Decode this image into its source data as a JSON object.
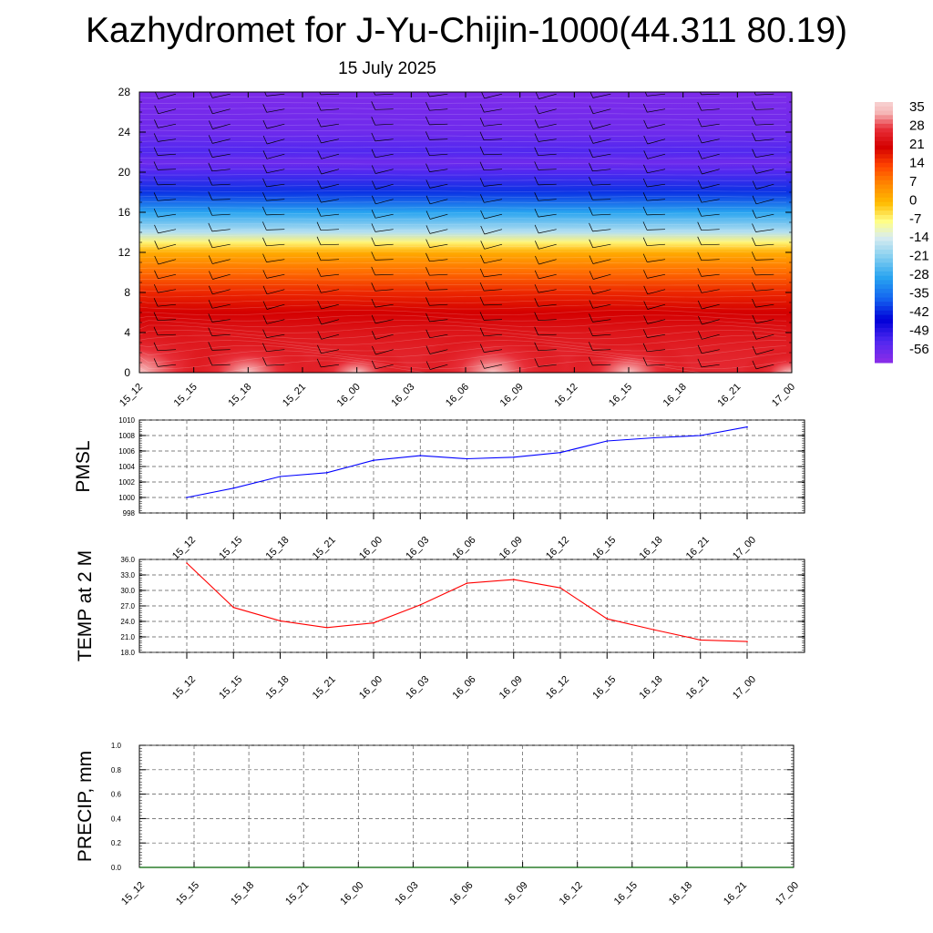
{
  "title": "Kazhydromet for J-Yu-Chijin-1000(44.311 80.19)",
  "date": "15 July 2025",
  "chart_data": [
    {
      "type": "heatmap",
      "name": "cross-section",
      "x_ticks": [
        "15_12",
        "15_15",
        "15_18",
        "15_21",
        "16_00",
        "16_03",
        "16_06",
        "16_09",
        "16_12",
        "16_15",
        "16_18",
        "16_21",
        "17_00"
      ],
      "y_ticks": [
        "0",
        "4",
        "8",
        "12",
        "16",
        "20",
        "24",
        "28"
      ],
      "ylim": [
        0,
        28
      ],
      "colorbar_labels": [
        "35",
        "28",
        "21",
        "14",
        "7",
        "0",
        "-7",
        "-14",
        "-21",
        "-28",
        "-35",
        "-42",
        "-49",
        "-56"
      ],
      "colorbar_range": [
        -60,
        38
      ],
      "temperature_profile_by_height": [
        {
          "y": 0,
          "v": 27
        },
        {
          "y": 2,
          "v": 26
        },
        {
          "y": 4,
          "v": 24
        },
        {
          "y": 6,
          "v": 21
        },
        {
          "y": 8,
          "v": 17
        },
        {
          "y": 10,
          "v": 10
        },
        {
          "y": 12,
          "v": 2
        },
        {
          "y": 13,
          "v": -6
        },
        {
          "y": 14,
          "v": -16
        },
        {
          "y": 16,
          "v": -28
        },
        {
          "y": 18,
          "v": -40
        },
        {
          "y": 20,
          "v": -52
        },
        {
          "y": 21,
          "v": -56
        },
        {
          "y": 22,
          "v": -52
        },
        {
          "y": 24,
          "v": -56
        },
        {
          "y": 28,
          "v": -58
        }
      ],
      "surface_warm_cores": [
        {
          "x": 0.0,
          "v": 35
        },
        {
          "x": 2.0,
          "v": 29
        },
        {
          "x": 4.0,
          "v": 24
        },
        {
          "x": 6.5,
          "v": 32
        },
        {
          "x": 9.0,
          "v": 28
        },
        {
          "x": 12.0,
          "v": 23
        }
      ],
      "grid": true,
      "colors": [
        "#f5b8b8",
        "#e8303a",
        "#d40000",
        "#ff4400",
        "#ff8800",
        "#ffbb00",
        "#ffff88",
        "#d8ecf0",
        "#88d0f0",
        "#28a4f0",
        "#1464f0",
        "#0000d8",
        "#5028f0",
        "#8c2ce8"
      ]
    },
    {
      "type": "line",
      "name": "PMSL",
      "ylabel": "PMSL",
      "x": [
        "15_12",
        "15_15",
        "15_18",
        "15_21",
        "16_00",
        "16_03",
        "16_06",
        "16_09",
        "16_12",
        "16_15",
        "16_18",
        "16_21",
        "17_00"
      ],
      "values": [
        1000.0,
        1001.2,
        1002.7,
        1003.2,
        1004.8,
        1005.4,
        1005.0,
        1005.2,
        1005.8,
        1007.3,
        1007.7,
        1008.0,
        1009.1
      ],
      "ylim": [
        998,
        1010
      ],
      "y_ticks": [
        "998",
        "1000",
        "1002",
        "1004",
        "1006",
        "1008",
        "1010"
      ],
      "color": "#0000ff",
      "grid": true
    },
    {
      "type": "line",
      "name": "TEMP",
      "ylabel": "TEMP at 2 M",
      "x": [
        "15_12",
        "15_15",
        "15_18",
        "15_21",
        "16_00",
        "16_03",
        "16_06",
        "16_09",
        "16_12",
        "16_15",
        "16_18",
        "16_21",
        "17_00"
      ],
      "values": [
        35.3,
        26.7,
        24.1,
        22.8,
        23.7,
        27.2,
        31.4,
        32.1,
        30.5,
        24.5,
        22.4,
        20.4,
        20.1
      ],
      "ylim": [
        18,
        36
      ],
      "y_ticks": [
        "18.0",
        "21.0",
        "24.0",
        "27.0",
        "30.0",
        "33.0",
        "36.0"
      ],
      "color": "#ff0000",
      "grid": true
    },
    {
      "type": "line",
      "name": "PRECIP",
      "ylabel": "PRECIP, mm",
      "x": [
        "15_12",
        "15_15",
        "15_18",
        "15_21",
        "16_00",
        "16_03",
        "16_06",
        "16_09",
        "16_12",
        "16_15",
        "16_18",
        "16_21",
        "17_00"
      ],
      "values": [
        0,
        0,
        0,
        0,
        0,
        0,
        0,
        0,
        0,
        0,
        0,
        0,
        0
      ],
      "ylim": [
        0,
        1
      ],
      "y_ticks": [
        "0.0",
        "0.2",
        "0.4",
        "0.6",
        "0.8",
        "1.0"
      ],
      "color": "#006400",
      "grid": true
    }
  ]
}
